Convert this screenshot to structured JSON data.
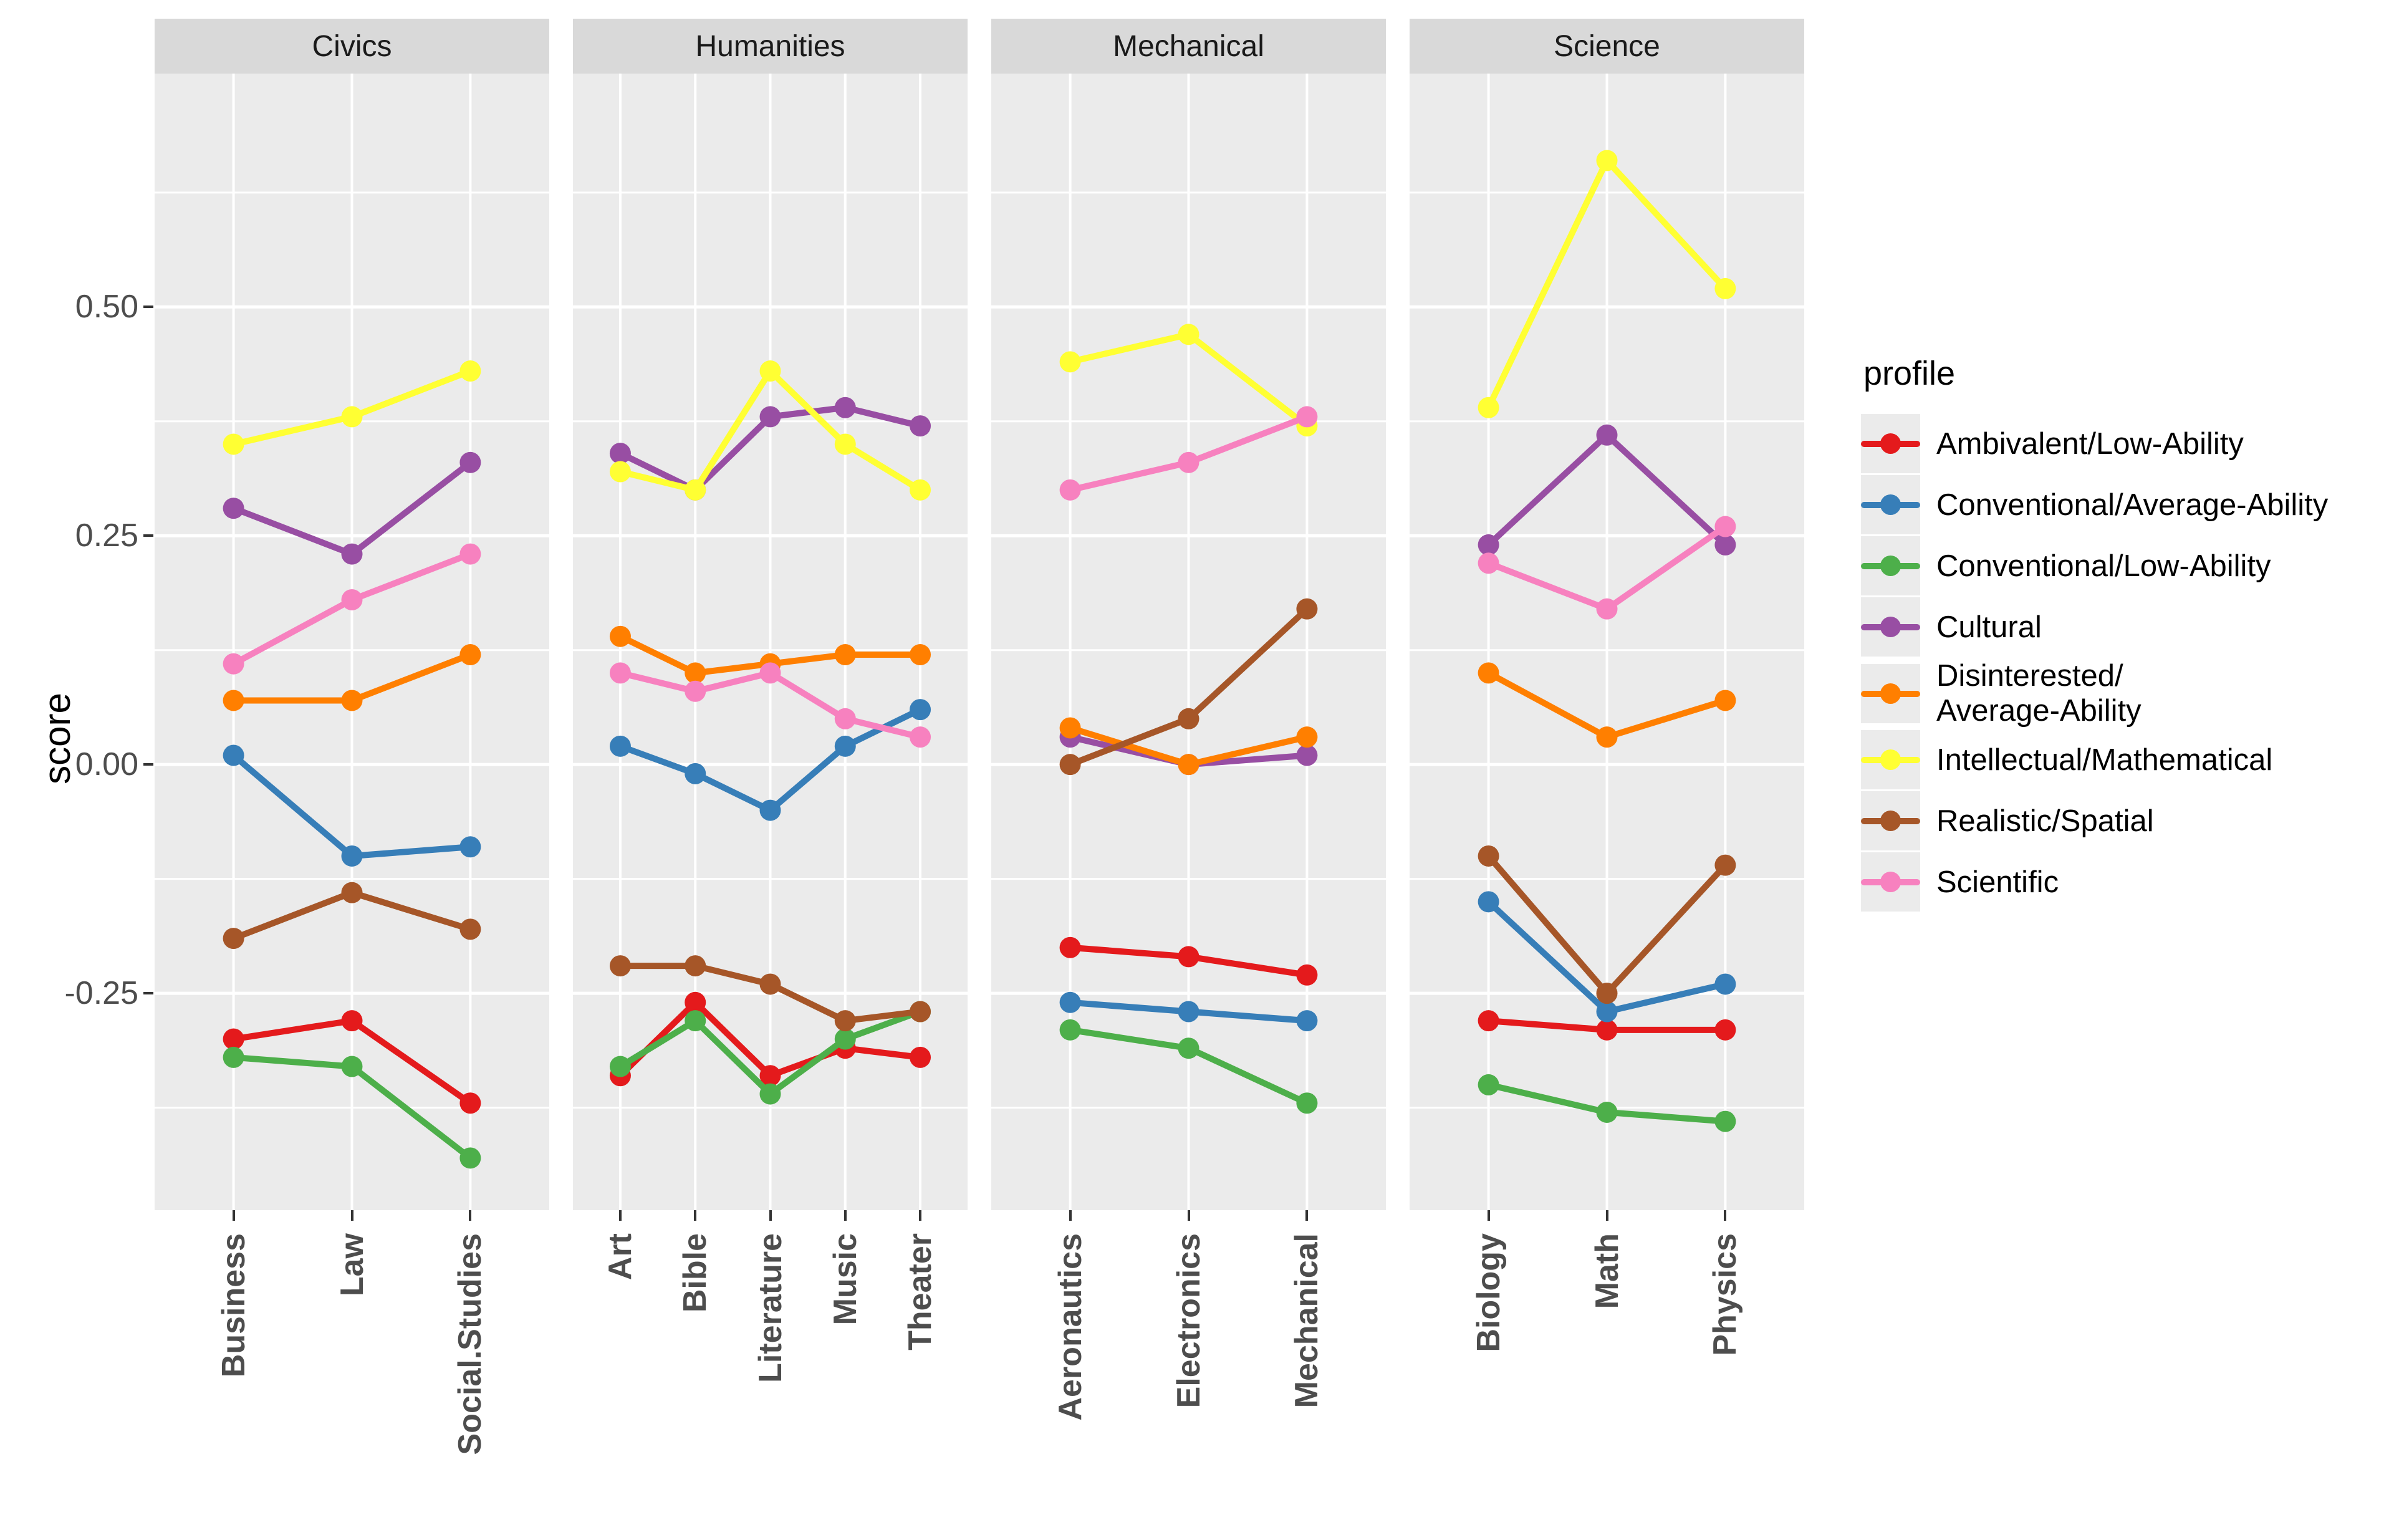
{
  "chart_data": {
    "type": "line",
    "ylabel": "score",
    "legend_title": "profile",
    "legend_position": "right",
    "grid": "on",
    "ylim": [
      -0.487,
      0.755
    ],
    "y_ticks": [
      {
        "label": "0.50",
        "value": 0.5
      },
      {
        "label": "0.25",
        "value": 0.25
      },
      {
        "label": "0.00",
        "value": 0.0
      },
      {
        "label": "-0.25",
        "value": -0.25
      }
    ],
    "y_grid_major": [
      0.5,
      0.25,
      0.0,
      -0.25
    ],
    "y_grid_minor": [
      0.625,
      0.375,
      0.125,
      -0.125,
      -0.375
    ],
    "profiles": [
      {
        "name": "Ambivalent/Low-Ability",
        "color": "#E41A1C"
      },
      {
        "name": "Conventional/Average-Ability",
        "color": "#377EB8"
      },
      {
        "name": "Conventional/Low-Ability",
        "color": "#4DAF4A"
      },
      {
        "name": "Cultural",
        "color": "#984EA3"
      },
      {
        "name": "Disinterested/\nAverage-Ability",
        "color": "#FF7F00"
      },
      {
        "name": "Intellectual/Mathematical",
        "color": "#FFFF33"
      },
      {
        "name": "Realistic/Spatial",
        "color": "#A65628"
      },
      {
        "name": "Scientific",
        "color": "#F781BF"
      }
    ],
    "facets": [
      {
        "label": "Civics",
        "categories": [
          "Business",
          "Law",
          "Social.Studies"
        ],
        "series": [
          {
            "profile": "Ambivalent/Low-Ability",
            "values": [
              -0.3,
              -0.28,
              -0.37
            ]
          },
          {
            "profile": "Conventional/Average-Ability",
            "values": [
              0.01,
              -0.1,
              -0.09
            ]
          },
          {
            "profile": "Conventional/Low-Ability",
            "values": [
              -0.32,
              -0.33,
              -0.43
            ]
          },
          {
            "profile": "Cultural",
            "values": [
              0.28,
              0.23,
              0.33
            ]
          },
          {
            "profile": "Disinterested/Average-Ability",
            "values": [
              0.07,
              0.07,
              0.12
            ]
          },
          {
            "profile": "Intellectual/Mathematical",
            "values": [
              0.35,
              0.38,
              0.43
            ]
          },
          {
            "profile": "Realistic/Spatial",
            "values": [
              -0.19,
              -0.14,
              -0.18
            ]
          },
          {
            "profile": "Scientific",
            "values": [
              0.11,
              0.18,
              0.23
            ]
          }
        ]
      },
      {
        "label": "Humanities",
        "categories": [
          "Art",
          "Bible",
          "Literature",
          "Music",
          "Theater"
        ],
        "series": [
          {
            "profile": "Ambivalent/Low-Ability",
            "values": [
              -0.34,
              -0.26,
              -0.34,
              -0.31,
              -0.32
            ]
          },
          {
            "profile": "Conventional/Average-Ability",
            "values": [
              0.02,
              -0.01,
              -0.05,
              0.02,
              0.06
            ]
          },
          {
            "profile": "Conventional/Low-Ability",
            "values": [
              -0.33,
              -0.28,
              -0.36,
              -0.3,
              -0.27
            ]
          },
          {
            "profile": "Cultural",
            "values": [
              0.34,
              0.3,
              0.38,
              0.39,
              0.37
            ]
          },
          {
            "profile": "Disinterested/Average-Ability",
            "values": [
              0.14,
              0.1,
              0.11,
              0.12,
              0.12
            ]
          },
          {
            "profile": "Intellectual/Mathematical",
            "values": [
              0.32,
              0.3,
              0.43,
              0.35,
              0.3
            ]
          },
          {
            "profile": "Realistic/Spatial",
            "values": [
              -0.22,
              -0.22,
              -0.24,
              -0.28,
              -0.27
            ]
          },
          {
            "profile": "Scientific",
            "values": [
              0.1,
              0.08,
              0.1,
              0.05,
              0.03
            ]
          }
        ]
      },
      {
        "label": "Mechanical",
        "categories": [
          "Aeronautics",
          "Electronics",
          "Mechanical"
        ],
        "series": [
          {
            "profile": "Ambivalent/Low-Ability",
            "values": [
              -0.2,
              -0.21,
              -0.23
            ]
          },
          {
            "profile": "Conventional/Average-Ability",
            "values": [
              -0.26,
              -0.27,
              -0.28
            ]
          },
          {
            "profile": "Conventional/Low-Ability",
            "values": [
              -0.29,
              -0.31,
              -0.37
            ]
          },
          {
            "profile": "Cultural",
            "values": [
              0.03,
              0.0,
              0.01
            ]
          },
          {
            "profile": "Disinterested/Average-Ability",
            "values": [
              0.04,
              0.0,
              0.03
            ]
          },
          {
            "profile": "Intellectual/Mathematical",
            "values": [
              0.44,
              0.47,
              0.37
            ]
          },
          {
            "profile": "Realistic/Spatial",
            "values": [
              0.0,
              0.05,
              0.17
            ]
          },
          {
            "profile": "Scientific",
            "values": [
              0.3,
              0.33,
              0.38
            ]
          }
        ]
      },
      {
        "label": "Science",
        "categories": [
          "Biology",
          "Math",
          "Physics"
        ],
        "series": [
          {
            "profile": "Ambivalent/Low-Ability",
            "values": [
              -0.28,
              -0.29,
              -0.29
            ]
          },
          {
            "profile": "Conventional/Average-Ability",
            "values": [
              -0.15,
              -0.27,
              -0.24
            ]
          },
          {
            "profile": "Conventional/Low-Ability",
            "values": [
              -0.35,
              -0.38,
              -0.39
            ]
          },
          {
            "profile": "Cultural",
            "values": [
              0.24,
              0.36,
              0.24
            ]
          },
          {
            "profile": "Disinterested/Average-Ability",
            "values": [
              0.1,
              0.03,
              0.07
            ]
          },
          {
            "profile": "Intellectual/Mathematical",
            "values": [
              0.39,
              0.66,
              0.52
            ]
          },
          {
            "profile": "Realistic/Spatial",
            "values": [
              -0.1,
              -0.25,
              -0.11
            ]
          },
          {
            "profile": "Scientific",
            "values": [
              0.22,
              0.17,
              0.26
            ]
          }
        ]
      }
    ],
    "colors": {
      "panel_background": "#EBEBEB",
      "strip_background": "#D9D9D9",
      "gridline": "#FFFFFF",
      "axis_text": "#4D4D4D",
      "strip_text": "#1A1A1A"
    }
  }
}
